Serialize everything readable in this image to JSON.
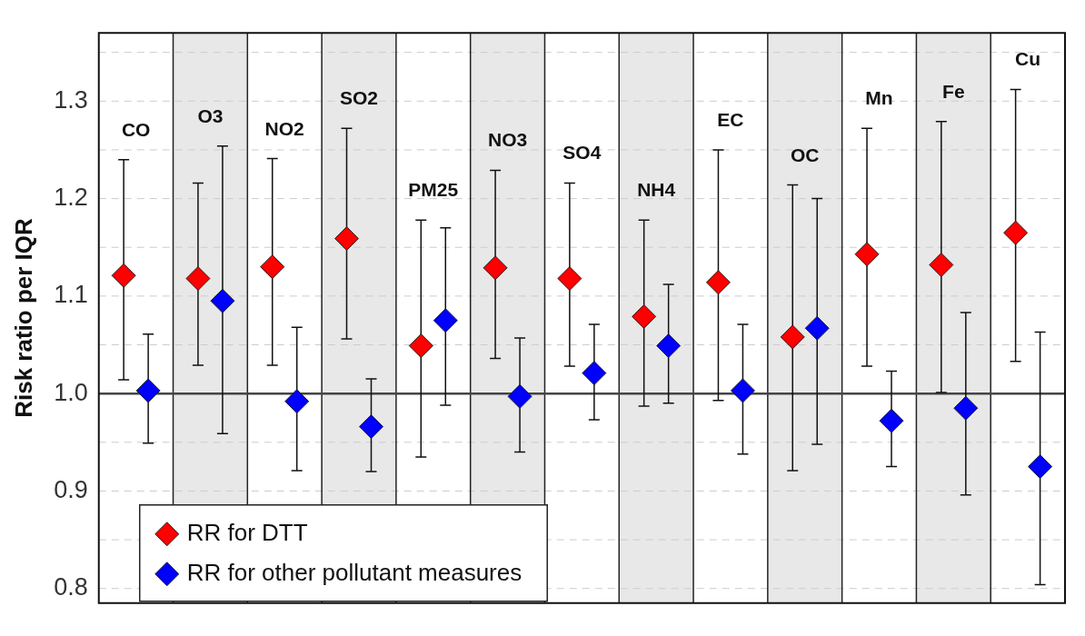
{
  "chart_data": {
    "type": "scatter",
    "ylabel": "Risk ratio per IQR",
    "categories": [
      "CO",
      "O3",
      "NO2",
      "SO2",
      "PM25",
      "NO3",
      "SO4",
      "NH4",
      "EC",
      "OC",
      "Mn",
      "Fe",
      "Cu"
    ],
    "series": [
      {
        "name": "RR for DTT",
        "color": "#ff0000",
        "values": [
          1.121,
          1.118,
          1.13,
          1.159,
          1.049,
          1.129,
          1.118,
          1.079,
          1.114,
          1.058,
          1.143,
          1.132,
          1.165
        ],
        "errors": [
          [
            1.014,
            1.24
          ],
          [
            1.029,
            1.216
          ],
          [
            1.029,
            1.241
          ],
          [
            1.056,
            1.272
          ],
          [
            0.935,
            1.178
          ],
          [
            1.036,
            1.229
          ],
          [
            1.028,
            1.216
          ],
          [
            0.987,
            1.178
          ],
          [
            0.993,
            1.25
          ],
          [
            0.921,
            1.214
          ],
          [
            1.028,
            1.272
          ],
          [
            1.001,
            1.279
          ],
          [
            1.033,
            1.312
          ]
        ]
      },
      {
        "name": "RR for other pollutant measures",
        "color": "#0000ff",
        "values": [
          1.003,
          1.095,
          0.992,
          0.966,
          1.075,
          0.997,
          1.021,
          1.049,
          1.003,
          1.067,
          0.972,
          0.985,
          0.925
        ],
        "errors": [
          [
            0.949,
            1.061
          ],
          [
            0.959,
            1.254
          ],
          [
            0.921,
            1.068
          ],
          [
            0.92,
            1.015
          ],
          [
            0.988,
            1.17
          ],
          [
            0.94,
            1.057
          ],
          [
            0.973,
            1.071
          ],
          [
            0.99,
            1.112
          ],
          [
            0.938,
            1.071
          ],
          [
            0.948,
            1.2
          ],
          [
            0.925,
            1.023
          ],
          [
            0.896,
            1.083
          ],
          [
            0.804,
            1.063
          ]
        ]
      }
    ],
    "ylim": [
      0.785,
      1.37
    ],
    "yticks": [
      {
        "value": 0.8,
        "label": "0.8"
      },
      {
        "value": 0.85,
        "label": null
      },
      {
        "value": 0.9,
        "label": "0.9"
      },
      {
        "value": 0.95,
        "label": null
      },
      {
        "value": 1.0,
        "label": "1.0"
      },
      {
        "value": 1.05,
        "label": null
      },
      {
        "value": 1.1,
        "label": "1.1"
      },
      {
        "value": 1.15,
        "label": null
      },
      {
        "value": 1.2,
        "label": "1.2"
      },
      {
        "value": 1.25,
        "label": null
      },
      {
        "value": 1.3,
        "label": "1.3"
      },
      {
        "value": 1.35,
        "label": null
      }
    ],
    "ref_lines": [
      {
        "axis": "y",
        "value": 1.0,
        "color": "#444444"
      }
    ],
    "grid": true,
    "legend": "bottom left",
    "marker": "diamond",
    "tick_labels": "y"
  }
}
